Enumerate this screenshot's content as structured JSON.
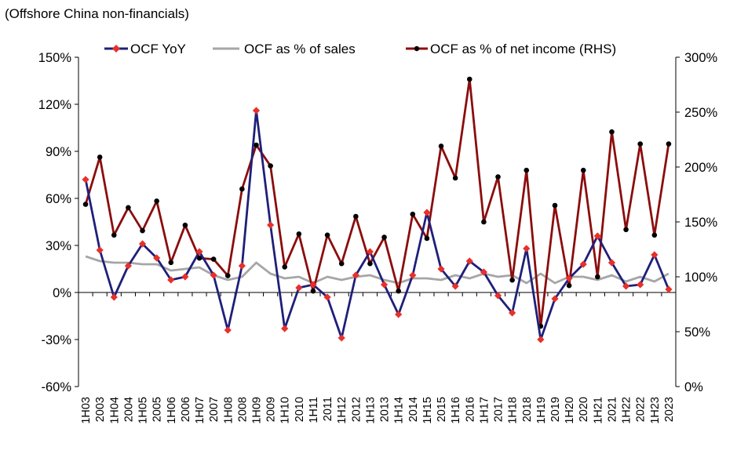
{
  "chart_data": {
    "type": "line",
    "title": "",
    "subtitle": "(Offshore China non-financials)",
    "categories": [
      "1H03",
      "2003",
      "1H04",
      "2004",
      "1H05",
      "2005",
      "1H06",
      "2006",
      "1H07",
      "2007",
      "1H08",
      "2008",
      "1H09",
      "2009",
      "1H10",
      "2010",
      "1H11",
      "2011",
      "1H12",
      "2012",
      "1H13",
      "2013",
      "1H14",
      "2014",
      "1H15",
      "2015",
      "1H16",
      "2016",
      "1H17",
      "2017",
      "1H18",
      "2018",
      "1H19",
      "2019",
      "1H20",
      "2020",
      "1H21",
      "2021",
      "1H22",
      "2022",
      "1H23",
      "2023"
    ],
    "left_axis": {
      "min": -60,
      "max": 150,
      "step": 30,
      "tick_labels": [
        "-60%",
        "-30%",
        "0%",
        "30%",
        "60%",
        "90%",
        "120%",
        "150%"
      ]
    },
    "right_axis": {
      "min": 0,
      "max": 300,
      "step": 50,
      "tick_labels": [
        "0%",
        "50%",
        "100%",
        "150%",
        "200%",
        "250%",
        "300%"
      ]
    },
    "legend_position": "top",
    "series": [
      {
        "name": "OCF YoY",
        "axis": "left",
        "color": "#1f1f7a",
        "marker_color": "#e8302a",
        "marker": "diamond",
        "values": [
          72,
          27,
          -3,
          17,
          31,
          22,
          8,
          10,
          26,
          11,
          -24,
          17,
          116,
          43,
          -23,
          3,
          5,
          -3,
          -29,
          11,
          26,
          5,
          -14,
          11,
          51,
          15,
          4,
          20,
          13,
          -2,
          -13,
          28,
          -30,
          -4,
          9,
          18,
          36,
          19,
          4,
          5,
          24,
          2
        ]
      },
      {
        "name": "OCF as % of sales",
        "axis": "left",
        "color": "#a6a6a6",
        "marker": "none",
        "values": [
          23,
          20,
          19,
          19,
          18,
          18,
          14,
          15,
          16,
          11,
          8,
          10,
          19,
          12,
          9,
          10,
          6,
          10,
          8,
          10,
          11,
          8,
          6,
          9,
          9,
          8,
          11,
          9,
          12,
          10,
          11,
          6,
          12,
          6,
          10,
          10,
          8,
          11,
          7,
          10,
          7,
          12
        ]
      },
      {
        "name": "OCF as % of net income (RHS)",
        "axis": "right",
        "color": "#8b0d0d",
        "marker_color": "#000000",
        "marker": "circle",
        "values": [
          166,
          209,
          138,
          163,
          142,
          169,
          113,
          147,
          117,
          116,
          101,
          180,
          220,
          201,
          109,
          139,
          87,
          138,
          112,
          155,
          112,
          136,
          87,
          157,
          135,
          219,
          190,
          280,
          150,
          191,
          97,
          197,
          55,
          165,
          92,
          197,
          100,
          232,
          143,
          221,
          138,
          221
        ]
      }
    ]
  }
}
